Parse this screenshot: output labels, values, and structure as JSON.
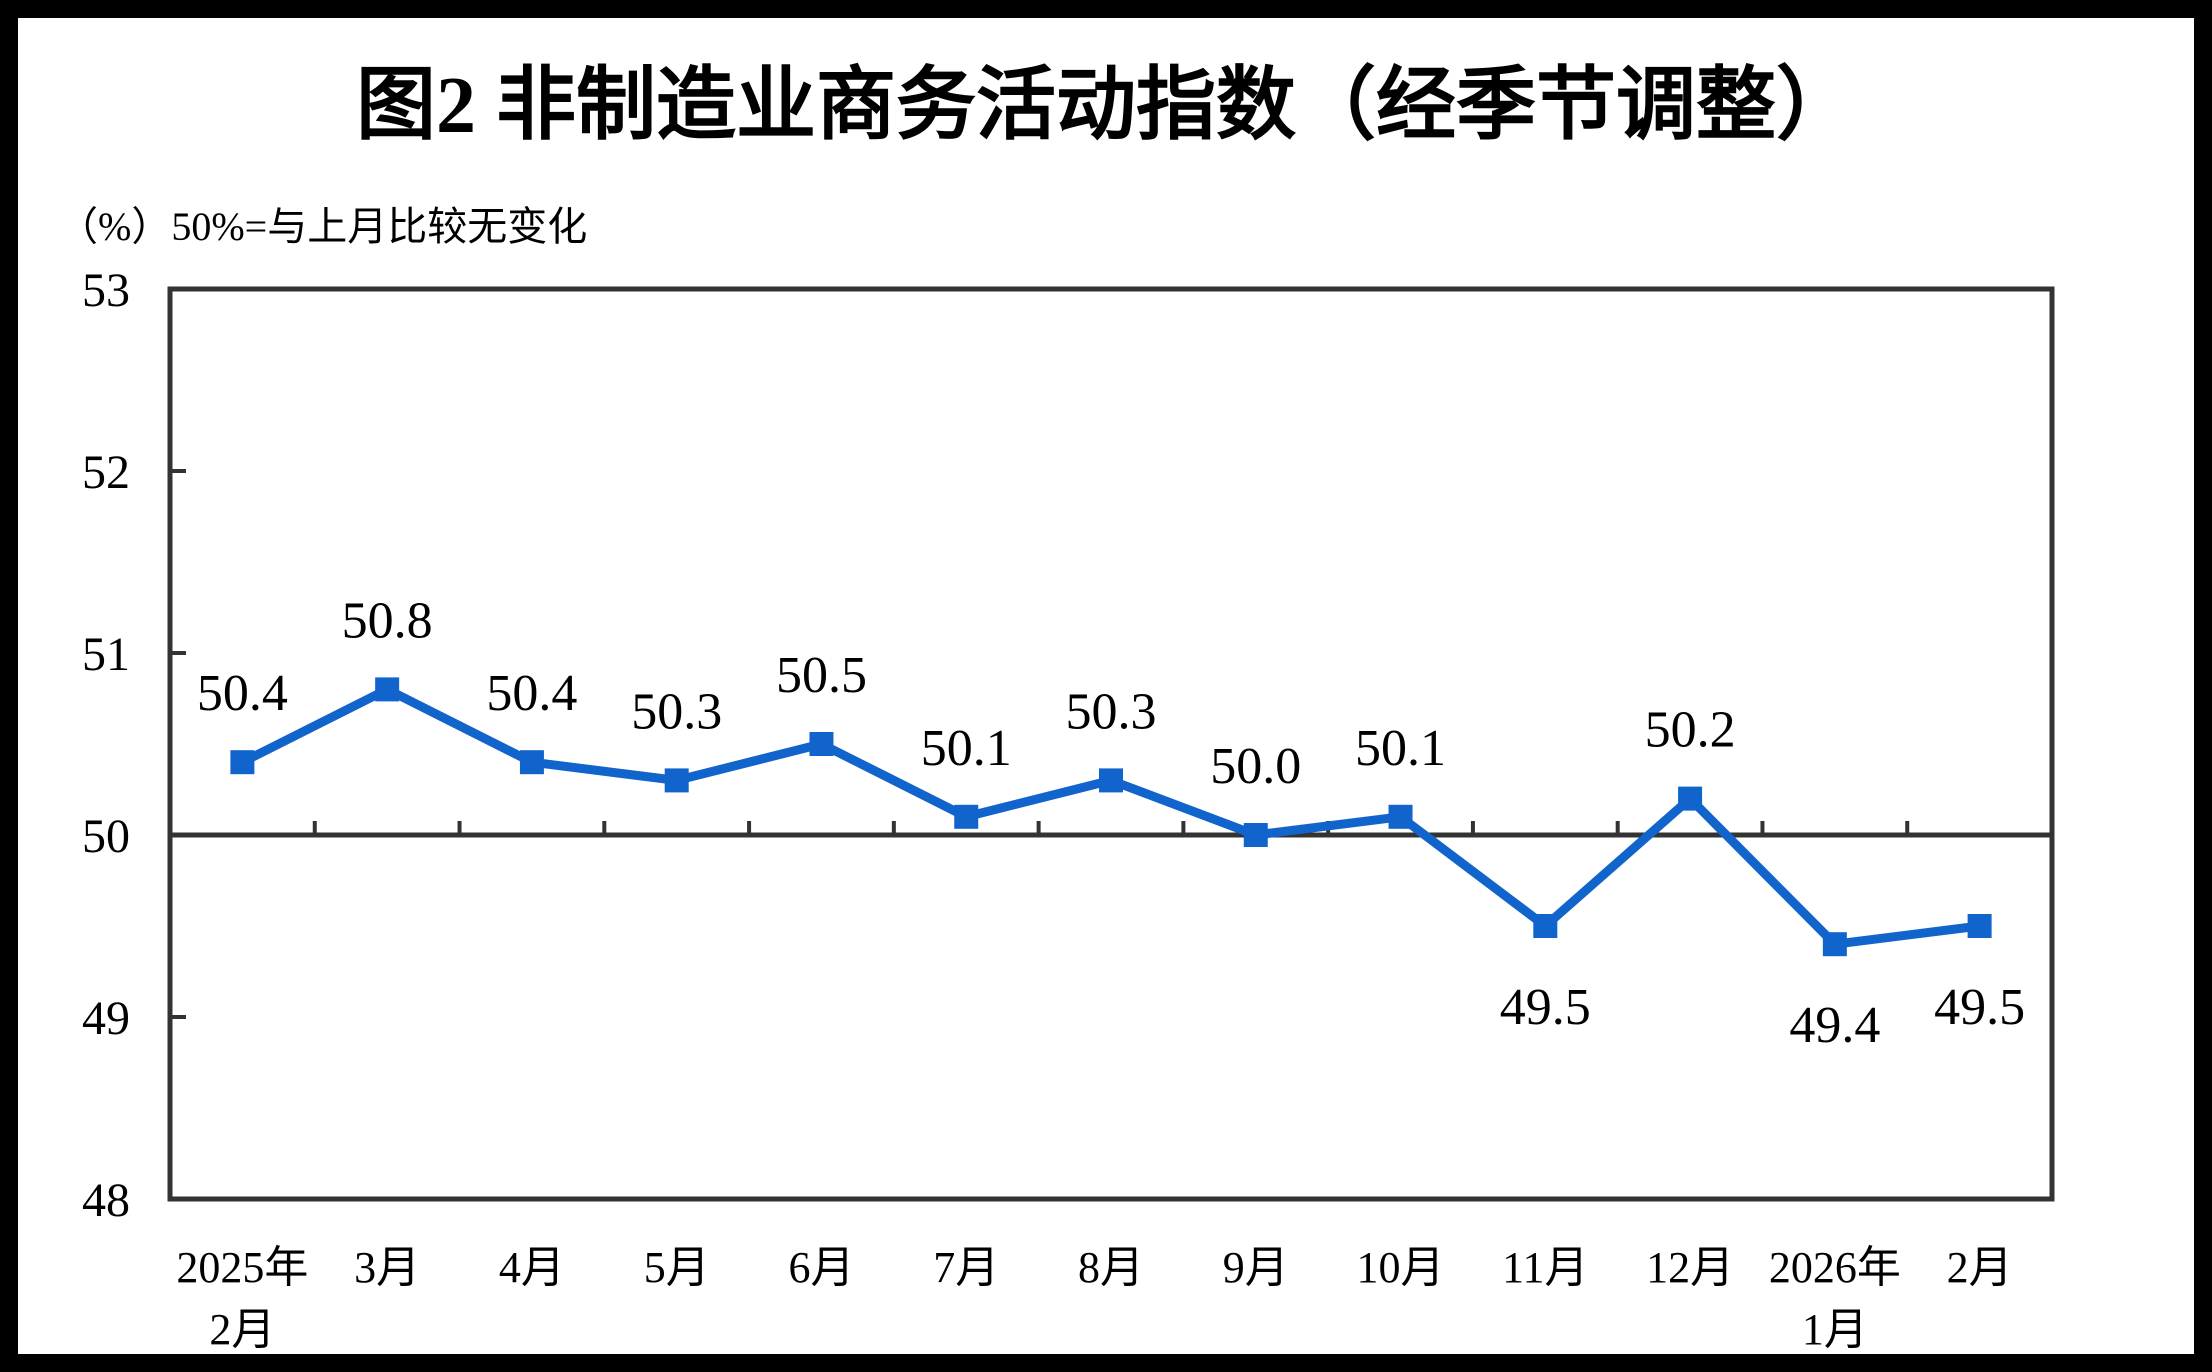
{
  "page": {
    "title": "图2 非制造业商务活动指数（经季节调整）",
    "axis_note": "（%）50%=与上月比较无变化"
  },
  "chart_data": {
    "type": "line",
    "title": "图2 非制造业商务活动指数（经季节调整）",
    "subtitle": "（%）50%=与上月比较无变化",
    "xlabel": "",
    "ylabel": "%",
    "ylim": [
      48,
      53
    ],
    "yticks": [
      48,
      49,
      50,
      51,
      52,
      53
    ],
    "reference_line": 50,
    "grid": "off",
    "legend": "none",
    "categories": [
      "2025年2月",
      "3月",
      "4月",
      "5月",
      "6月",
      "7月",
      "8月",
      "9月",
      "10月",
      "11月",
      "12月",
      "2026年1月",
      "2月"
    ],
    "category_label_lines": [
      [
        "2025年",
        "2月"
      ],
      [
        "3月"
      ],
      [
        "4月"
      ],
      [
        "5月"
      ],
      [
        "6月"
      ],
      [
        "7月"
      ],
      [
        "8月"
      ],
      [
        "9月"
      ],
      [
        "10月"
      ],
      [
        "11月"
      ],
      [
        "12月"
      ],
      [
        "2026年",
        "1月"
      ],
      [
        "2月"
      ]
    ],
    "values": [
      50.4,
      50.8,
      50.4,
      50.3,
      50.5,
      50.1,
      50.3,
      50.0,
      50.1,
      49.5,
      50.2,
      49.4,
      49.5
    ],
    "data_labels": [
      "50.4",
      "50.8",
      "50.4",
      "50.3",
      "50.5",
      "50.1",
      "50.3",
      "50.0",
      "50.1",
      "49.5",
      "50.2",
      "49.4",
      "49.5"
    ],
    "colors": {
      "series": "#1164CB",
      "axis": "#333333",
      "text": "#000000",
      "background": "#FFFFFF",
      "page_border": "#000000"
    }
  }
}
